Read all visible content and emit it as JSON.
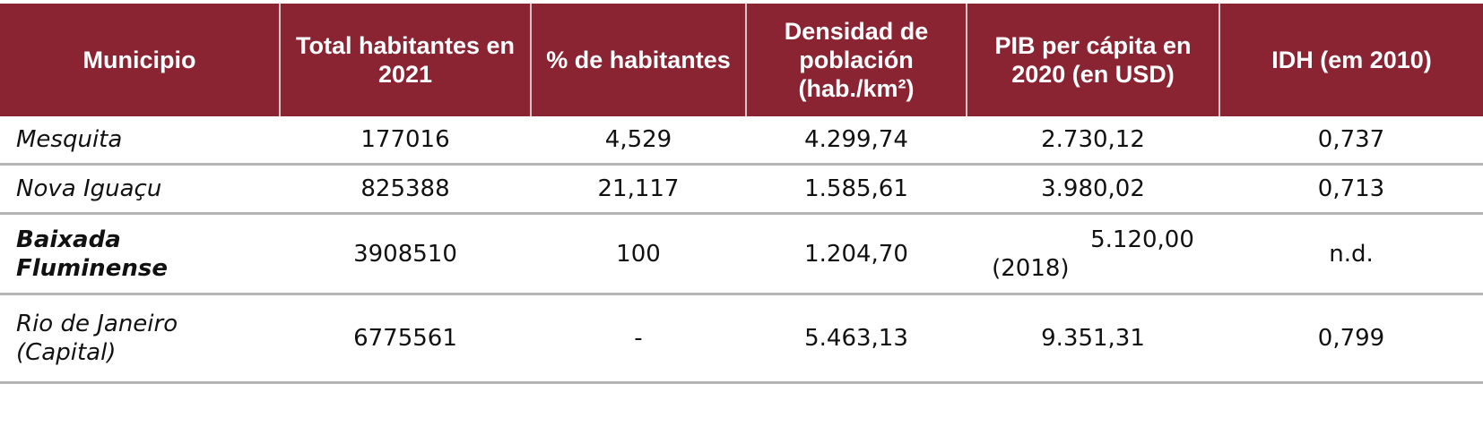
{
  "headers": [
    "Municipio",
    "Total habitantes en 2021",
    "% de habitantes",
    "Densidad de población (hab./km²)",
    "PIB per cápita en 2020 (en USD)",
    "IDH (em 2010)"
  ],
  "rows": [
    {
      "municipio": "Mesquita",
      "total": "177016",
      "pct": "4,529",
      "densidad": "4.299,74",
      "pib": "2.730,12",
      "idh": "0,737"
    },
    {
      "municipio": "Nova Iguaçu",
      "total": "825388",
      "pct": "21,117",
      "densidad": "1.585,61",
      "pib": "3.980,02",
      "idh": "0,713"
    },
    {
      "municipio": "Baixada Fluminense",
      "total": "3908510",
      "pct": "100",
      "densidad": "1.204,70",
      "pib": "5.120,00",
      "pib_note": "(2018)",
      "idh": "n.d."
    },
    {
      "municipio": "Rio de Janeiro (Capital)",
      "total": "6775561",
      "pct": "-",
      "densidad": "5.463,13",
      "pib": "9.351,31",
      "idh": "0,799"
    }
  ],
  "colors": {
    "header_bg": "#8a2332",
    "row_border": "#b5b5b5"
  }
}
